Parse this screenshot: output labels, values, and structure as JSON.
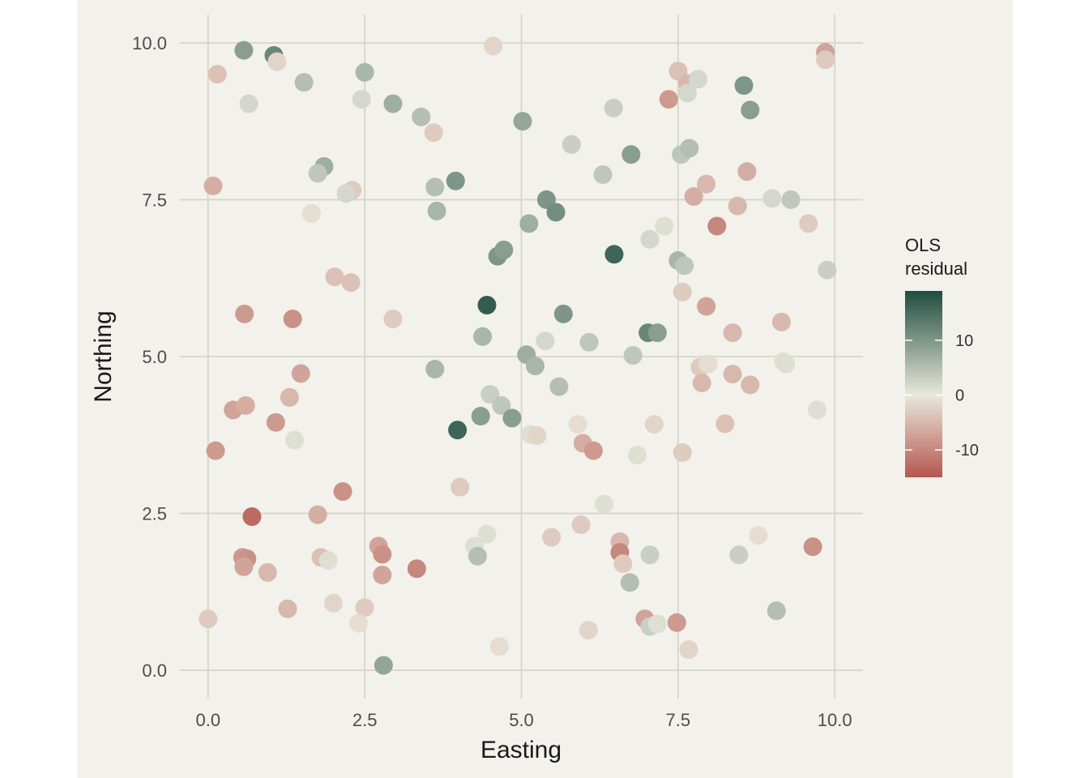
{
  "chart_data": {
    "type": "scatter",
    "title": "",
    "xlabel": "Easting",
    "ylabel": "Northing",
    "xlim": [
      -0.45,
      10.45
    ],
    "ylim": [
      -0.45,
      10.45
    ],
    "x_ticks": [
      0.0,
      2.5,
      5.0,
      7.5,
      10.0
    ],
    "x_tick_labels": [
      "0.0",
      "2.5",
      "5.0",
      "7.5",
      "10.0"
    ],
    "y_ticks": [
      0.0,
      2.5,
      5.0,
      7.5,
      10.0
    ],
    "y_tick_labels": [
      "0.0",
      "2.5",
      "5.0",
      "7.5",
      "10.0"
    ],
    "grid": true,
    "colors": {
      "panel_background": "#f2f1eb",
      "page_background": "#ffffff",
      "grid": "#d6d5c8",
      "low": "#b5574f",
      "mid": "#e9e7db",
      "high": "#1e4d3f"
    },
    "legend": {
      "title_line1": "OLS",
      "title_line2": "residual",
      "placement": "right",
      "min": -15,
      "max": 19,
      "breaks": [
        10,
        0,
        -10
      ],
      "break_labels": [
        "10",
        "0",
        "-10"
      ]
    },
    "points": [
      {
        "x": 0.57,
        "y": 9.88,
        "residual": 9
      },
      {
        "x": 1.05,
        "y": 9.8,
        "residual": 12
      },
      {
        "x": 1.1,
        "y": 9.7,
        "residual": -2
      },
      {
        "x": 0.15,
        "y": 9.5,
        "residual": -4
      },
      {
        "x": 0.65,
        "y": 9.03,
        "residual": 2
      },
      {
        "x": 1.53,
        "y": 9.37,
        "residual": 5
      },
      {
        "x": 2.5,
        "y": 9.53,
        "residual": 6
      },
      {
        "x": 2.45,
        "y": 9.1,
        "residual": 2
      },
      {
        "x": 2.95,
        "y": 9.03,
        "residual": 7
      },
      {
        "x": 3.4,
        "y": 8.82,
        "residual": 5
      },
      {
        "x": 3.6,
        "y": 8.57,
        "residual": -3
      },
      {
        "x": 4.55,
        "y": 9.95,
        "residual": -2
      },
      {
        "x": 5.02,
        "y": 8.75,
        "residual": 8
      },
      {
        "x": 5.8,
        "y": 8.38,
        "residual": 3
      },
      {
        "x": 6.47,
        "y": 8.96,
        "residual": 3
      },
      {
        "x": 6.75,
        "y": 8.22,
        "residual": 9
      },
      {
        "x": 6.3,
        "y": 7.9,
        "residual": 4
      },
      {
        "x": 7.5,
        "y": 9.55,
        "residual": -4
      },
      {
        "x": 7.35,
        "y": 9.1,
        "residual": -8
      },
      {
        "x": 7.65,
        "y": 9.35,
        "residual": -5
      },
      {
        "x": 7.65,
        "y": 9.2,
        "residual": 2
      },
      {
        "x": 7.82,
        "y": 9.42,
        "residual": 2
      },
      {
        "x": 8.55,
        "y": 9.32,
        "residual": 10
      },
      {
        "x": 8.65,
        "y": 8.93,
        "residual": 9
      },
      {
        "x": 9.85,
        "y": 9.85,
        "residual": -7
      },
      {
        "x": 9.85,
        "y": 9.73,
        "residual": -3
      },
      {
        "x": 7.55,
        "y": 8.22,
        "residual": 4
      },
      {
        "x": 7.68,
        "y": 8.32,
        "residual": 5
      },
      {
        "x": 1.85,
        "y": 8.03,
        "residual": 7
      },
      {
        "x": 1.75,
        "y": 7.92,
        "residual": 4
      },
      {
        "x": 0.08,
        "y": 7.72,
        "residual": -6
      },
      {
        "x": 2.3,
        "y": 7.65,
        "residual": -3
      },
      {
        "x": 2.2,
        "y": 7.6,
        "residual": 2
      },
      {
        "x": 1.65,
        "y": 7.28,
        "residual": -1
      },
      {
        "x": 3.62,
        "y": 7.7,
        "residual": 5
      },
      {
        "x": 3.65,
        "y": 7.32,
        "residual": 6
      },
      {
        "x": 3.95,
        "y": 7.8,
        "residual": 10
      },
      {
        "x": 5.4,
        "y": 7.5,
        "residual": 10
      },
      {
        "x": 5.55,
        "y": 7.3,
        "residual": 11
      },
      {
        "x": 5.12,
        "y": 7.12,
        "residual": 7
      },
      {
        "x": 4.62,
        "y": 6.6,
        "residual": 10
      },
      {
        "x": 4.72,
        "y": 6.7,
        "residual": 9
      },
      {
        "x": 6.48,
        "y": 6.63,
        "residual": 16
      },
      {
        "x": 7.05,
        "y": 6.87,
        "residual": 2
      },
      {
        "x": 7.28,
        "y": 7.08,
        "residual": 1
      },
      {
        "x": 7.75,
        "y": 7.55,
        "residual": -6
      },
      {
        "x": 7.95,
        "y": 7.75,
        "residual": -5
      },
      {
        "x": 8.12,
        "y": 7.08,
        "residual": -10
      },
      {
        "x": 8.45,
        "y": 7.4,
        "residual": -5
      },
      {
        "x": 8.6,
        "y": 7.95,
        "residual": -6
      },
      {
        "x": 9.0,
        "y": 7.52,
        "residual": 2
      },
      {
        "x": 9.3,
        "y": 7.5,
        "residual": 4
      },
      {
        "x": 9.58,
        "y": 7.12,
        "residual": -3
      },
      {
        "x": 9.88,
        "y": 6.38,
        "residual": 3
      },
      {
        "x": 7.5,
        "y": 6.53,
        "residual": 6
      },
      {
        "x": 7.6,
        "y": 6.45,
        "residual": 4
      },
      {
        "x": 7.57,
        "y": 6.03,
        "residual": -3
      },
      {
        "x": 7.95,
        "y": 5.8,
        "residual": -7
      },
      {
        "x": 2.02,
        "y": 6.27,
        "residual": -4
      },
      {
        "x": 2.28,
        "y": 6.18,
        "residual": -4
      },
      {
        "x": 0.58,
        "y": 5.68,
        "residual": -8
      },
      {
        "x": 1.35,
        "y": 5.6,
        "residual": -9
      },
      {
        "x": 2.95,
        "y": 5.6,
        "residual": -3
      },
      {
        "x": 4.45,
        "y": 5.82,
        "residual": 17
      },
      {
        "x": 5.67,
        "y": 5.68,
        "residual": 10
      },
      {
        "x": 4.38,
        "y": 5.32,
        "residual": 6
      },
      {
        "x": 5.38,
        "y": 5.25,
        "residual": 2
      },
      {
        "x": 6.08,
        "y": 5.23,
        "residual": 4
      },
      {
        "x": 7.02,
        "y": 5.38,
        "residual": 12
      },
      {
        "x": 7.17,
        "y": 5.38,
        "residual": 9
      },
      {
        "x": 5.08,
        "y": 5.03,
        "residual": 7
      },
      {
        "x": 5.22,
        "y": 4.85,
        "residual": 6
      },
      {
        "x": 6.78,
        "y": 5.02,
        "residual": 4
      },
      {
        "x": 8.37,
        "y": 5.38,
        "residual": -5
      },
      {
        "x": 9.15,
        "y": 5.55,
        "residual": -5
      },
      {
        "x": 3.62,
        "y": 4.8,
        "residual": 6
      },
      {
        "x": 1.48,
        "y": 4.73,
        "residual": -7
      },
      {
        "x": 1.3,
        "y": 4.35,
        "residual": -5
      },
      {
        "x": 0.4,
        "y": 4.15,
        "residual": -7
      },
      {
        "x": 0.6,
        "y": 4.22,
        "residual": -6
      },
      {
        "x": 1.08,
        "y": 3.95,
        "residual": -8
      },
      {
        "x": 1.38,
        "y": 3.67,
        "residual": 1
      },
      {
        "x": 0.12,
        "y": 3.5,
        "residual": -8
      },
      {
        "x": 4.5,
        "y": 4.4,
        "residual": 3
      },
      {
        "x": 4.68,
        "y": 4.22,
        "residual": 4
      },
      {
        "x": 4.35,
        "y": 4.05,
        "residual": 9
      },
      {
        "x": 4.85,
        "y": 4.02,
        "residual": 9
      },
      {
        "x": 3.98,
        "y": 3.83,
        "residual": 16
      },
      {
        "x": 5.6,
        "y": 4.52,
        "residual": 5
      },
      {
        "x": 5.15,
        "y": 3.76,
        "residual": 1
      },
      {
        "x": 5.25,
        "y": 3.74,
        "residual": -2
      },
      {
        "x": 5.9,
        "y": 3.92,
        "residual": -1
      },
      {
        "x": 5.98,
        "y": 3.62,
        "residual": -6
      },
      {
        "x": 6.15,
        "y": 3.5,
        "residual": -8
      },
      {
        "x": 6.85,
        "y": 3.43,
        "residual": 1
      },
      {
        "x": 7.12,
        "y": 3.92,
        "residual": -2
      },
      {
        "x": 7.57,
        "y": 3.47,
        "residual": -3
      },
      {
        "x": 7.85,
        "y": 4.83,
        "residual": -3
      },
      {
        "x": 7.98,
        "y": 4.88,
        "residual": -1
      },
      {
        "x": 7.88,
        "y": 4.58,
        "residual": -5
      },
      {
        "x": 8.37,
        "y": 4.72,
        "residual": -5
      },
      {
        "x": 8.65,
        "y": 4.55,
        "residual": -5
      },
      {
        "x": 8.25,
        "y": 3.93,
        "residual": -4
      },
      {
        "x": 9.18,
        "y": 4.92,
        "residual": -1
      },
      {
        "x": 9.22,
        "y": 4.88,
        "residual": 1
      },
      {
        "x": 9.72,
        "y": 4.15,
        "residual": 1
      },
      {
        "x": 4.02,
        "y": 2.92,
        "residual": -3
      },
      {
        "x": 2.15,
        "y": 2.85,
        "residual": -9
      },
      {
        "x": 0.7,
        "y": 2.45,
        "residual": -13
      },
      {
        "x": 1.75,
        "y": 2.48,
        "residual": -6
      },
      {
        "x": 6.32,
        "y": 2.65,
        "residual": 1
      },
      {
        "x": 4.45,
        "y": 2.17,
        "residual": 1
      },
      {
        "x": 4.25,
        "y": 1.98,
        "residual": 1
      },
      {
        "x": 4.3,
        "y": 1.82,
        "residual": 5
      },
      {
        "x": 5.48,
        "y": 2.12,
        "residual": -3
      },
      {
        "x": 5.95,
        "y": 2.32,
        "residual": -3
      },
      {
        "x": 6.57,
        "y": 2.05,
        "residual": -5
      },
      {
        "x": 6.57,
        "y": 1.88,
        "residual": -10
      },
      {
        "x": 6.62,
        "y": 1.7,
        "residual": -3
      },
      {
        "x": 7.05,
        "y": 1.84,
        "residual": 3
      },
      {
        "x": 6.73,
        "y": 1.4,
        "residual": 5
      },
      {
        "x": 8.78,
        "y": 2.15,
        "residual": -1
      },
      {
        "x": 8.47,
        "y": 1.84,
        "residual": 3
      },
      {
        "x": 9.65,
        "y": 1.97,
        "residual": -9
      },
      {
        "x": 9.07,
        "y": 0.95,
        "residual": 5
      },
      {
        "x": 2.72,
        "y": 1.98,
        "residual": -7
      },
      {
        "x": 2.78,
        "y": 1.85,
        "residual": -9
      },
      {
        "x": 2.78,
        "y": 1.52,
        "residual": -7
      },
      {
        "x": 3.33,
        "y": 1.62,
        "residual": -10
      },
      {
        "x": 0.55,
        "y": 1.8,
        "residual": -8
      },
      {
        "x": 0.62,
        "y": 1.78,
        "residual": -9
      },
      {
        "x": 0.57,
        "y": 1.65,
        "residual": -7
      },
      {
        "x": 0.95,
        "y": 1.56,
        "residual": -5
      },
      {
        "x": 1.8,
        "y": 1.8,
        "residual": -4
      },
      {
        "x": 1.92,
        "y": 1.75,
        "residual": 1
      },
      {
        "x": 1.27,
        "y": 0.98,
        "residual": -5
      },
      {
        "x": 2.0,
        "y": 1.07,
        "residual": -2
      },
      {
        "x": 2.5,
        "y": 1.0,
        "residual": -3
      },
      {
        "x": 2.4,
        "y": 0.75,
        "residual": -1
      },
      {
        "x": 0.0,
        "y": 0.82,
        "residual": -3
      },
      {
        "x": 2.8,
        "y": 0.08,
        "residual": 8
      },
      {
        "x": 4.65,
        "y": 0.38,
        "residual": -1
      },
      {
        "x": 6.07,
        "y": 0.64,
        "residual": -2
      },
      {
        "x": 6.97,
        "y": 0.82,
        "residual": -7
      },
      {
        "x": 7.05,
        "y": 0.7,
        "residual": 3
      },
      {
        "x": 7.17,
        "y": 0.74,
        "residual": 1
      },
      {
        "x": 7.48,
        "y": 0.76,
        "residual": -8
      },
      {
        "x": 7.67,
        "y": 0.33,
        "residual": -2
      }
    ]
  }
}
